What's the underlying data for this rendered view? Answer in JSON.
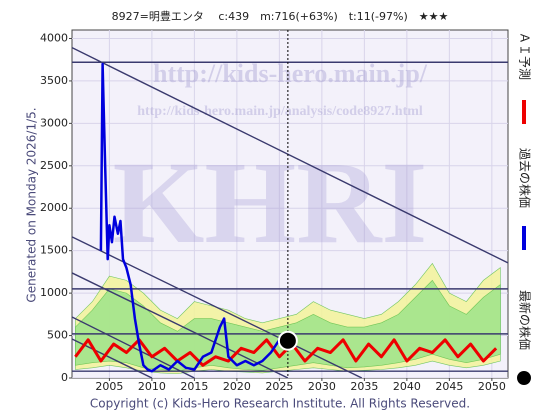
{
  "chart_data": {
    "type": "line",
    "title": "8927=明豊エンタ　 c:439　m:716(+63%)　t:11(-97%)　★★★",
    "side_label": "Generated on Monday 2026/1/5.",
    "footer": "Copyright (c) Kids-Hero Research Institute. All Rights Reserved.",
    "watermarks": [
      "http://kids-hero.main.jp/",
      "http://kids-hero.main.jp/analysis/code8927.html",
      "KHRI"
    ],
    "xlim": [
      2000.6,
      2051.9
    ],
    "ylim": [
      0,
      4100
    ],
    "xticks": [
      2005,
      2010,
      2015,
      2020,
      2025,
      2030,
      2035,
      2040,
      2045,
      2050
    ],
    "yticks": [
      0,
      500,
      1000,
      1500,
      2000,
      2500,
      3000,
      3500,
      4000
    ],
    "grid": true,
    "series": [
      {
        "name": "最新の株価",
        "color": "#000000",
        "x": [
          2026.0
        ],
        "values": [
          439
        ]
      },
      {
        "name": "過去の株価",
        "color": "#0000dd",
        "x": [
          2004.0,
          2004.2,
          2004.5,
          2004.8,
          2005.0,
          2005.3,
          2005.6,
          2006.0,
          2006.3,
          2006.6,
          2007.0,
          2007.5,
          2008.0,
          2008.5,
          2009.0,
          2009.5,
          2010.0,
          2011.0,
          2012.0,
          2013.0,
          2014.0,
          2015.0,
          2016.0,
          2017.0,
          2018.0,
          2018.5,
          2019.0,
          2020.0,
          2021.0,
          2022.0,
          2023.0,
          2024.0,
          2025.0,
          2025.5
        ],
        "values": [
          1500,
          3700,
          2500,
          1400,
          1800,
          1600,
          1900,
          1700,
          1850,
          1400,
          1300,
          1100,
          700,
          400,
          150,
          100,
          80,
          150,
          100,
          200,
          120,
          100,
          250,
          300,
          600,
          700,
          250,
          150,
          200,
          150,
          200,
          300,
          450,
          420
        ]
      },
      {
        "name": "ＡＩ予測",
        "color": "#ee0000",
        "x": [
          2001.0,
          2002.5,
          2004.0,
          2005.5,
          2007.0,
          2008.5,
          2010.0,
          2011.5,
          2013.0,
          2014.5,
          2016.0,
          2017.5,
          2019.0,
          2020.5,
          2022.0,
          2023.5,
          2025.0,
          2026.5,
          2028.0,
          2029.5,
          2031.0,
          2032.5,
          2034.0,
          2035.5,
          2037.0,
          2038.5,
          2040.0,
          2041.5,
          2043.0,
          2044.5,
          2046.0,
          2047.5,
          2049.0,
          2050.5
        ],
        "values": [
          250,
          450,
          200,
          400,
          300,
          450,
          250,
          350,
          200,
          300,
          150,
          250,
          200,
          350,
          300,
          450,
          250,
          400,
          200,
          350,
          300,
          450,
          200,
          400,
          250,
          450,
          200,
          350,
          300,
          450,
          250,
          400,
          200,
          350
        ]
      }
    ],
    "bands": [
      {
        "color": "#f4f49a",
        "x": [
          2001,
          2003,
          2005,
          2007,
          2009,
          2011,
          2013,
          2015,
          2017,
          2019,
          2021,
          2023,
          2025,
          2027,
          2029,
          2031,
          2033,
          2035,
          2037,
          2039,
          2041,
          2043,
          2045,
          2047,
          2049,
          2051
        ],
        "upper": [
          700,
          900,
          1200,
          1150,
          1000,
          800,
          700,
          900,
          850,
          800,
          700,
          650,
          700,
          750,
          900,
          800,
          750,
          700,
          750,
          900,
          1100,
          1350,
          1000,
          900,
          1150,
          1300
        ],
        "lower": [
          100,
          120,
          150,
          120,
          80,
          60,
          50,
          80,
          100,
          80,
          70,
          60,
          80,
          100,
          120,
          100,
          80,
          90,
          100,
          120,
          150,
          200,
          150,
          120,
          150,
          200
        ]
      },
      {
        "color": "#9ee48a",
        "x": [
          2001,
          2003,
          2005,
          2007,
          2009,
          2011,
          2013,
          2015,
          2017,
          2019,
          2021,
          2023,
          2025,
          2027,
          2029,
          2031,
          2033,
          2035,
          2037,
          2039,
          2041,
          2043,
          2045,
          2047,
          2049,
          2051
        ],
        "upper": [
          600,
          800,
          1050,
          1000,
          850,
          650,
          550,
          700,
          700,
          650,
          600,
          550,
          600,
          650,
          750,
          650,
          600,
          600,
          650,
          750,
          950,
          1150,
          850,
          750,
          950,
          1100
        ],
        "lower": [
          150,
          180,
          200,
          180,
          120,
          100,
          80,
          120,
          150,
          120,
          100,
          90,
          120,
          150,
          180,
          150,
          120,
          130,
          150,
          180,
          220,
          280,
          220,
          180,
          220,
          280
        ]
      }
    ],
    "trend_lines": [
      {
        "x": [
          2000.6,
          2051.9
        ],
        "y": [
          3892,
          1356
        ]
      },
      {
        "x": [
          2000.6,
          2034.7
        ],
        "y": [
          1663,
          0
        ]
      },
      {
        "x": [
          2000.6,
          2026.0
        ],
        "y": [
          1238,
          0
        ]
      },
      {
        "x": [
          2000.6,
          2015.0
        ],
        "y": [
          719,
          0
        ]
      },
      {
        "x": [
          2000.6,
          2010.0
        ],
        "y": [
          460,
          0
        ]
      }
    ],
    "levels": [
      3720,
      1050,
      520,
      80
    ],
    "trend_color": "#3a3a6e"
  }
}
